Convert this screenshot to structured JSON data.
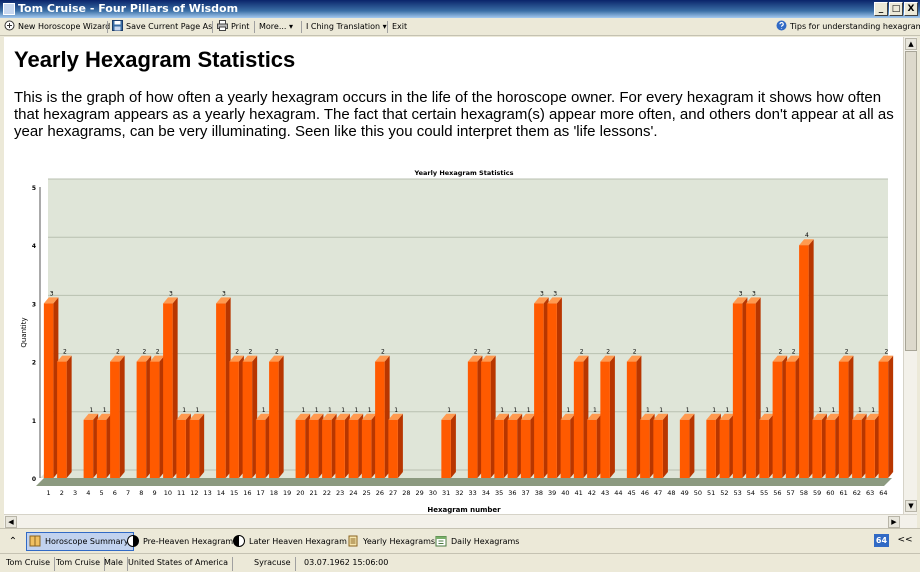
{
  "window": {
    "title": "Tom Cruise - Four Pillars of Wisdom",
    "controls": {
      "minimize": "_",
      "maximize": "□",
      "close": "X"
    }
  },
  "toolbar": {
    "new_wizard": "New Horoscope Wizard",
    "save_page": "Save Current Page As",
    "print": "Print",
    "more": "More...",
    "iching": "I Ching Translation",
    "exit": "Exit",
    "tips": "Tips for understanding hexagrams",
    "dropdown_glyph": "▾"
  },
  "page": {
    "heading": "Yearly Hexagram Statistics",
    "intro": "This is the graph of how often a yearly hexagram occurs in the life of the horoscope owner. For every hexagram it shows how often that hexagram appears as a yearly hexagram. The fact that certain hexagram(s) appear more often, and others don't appear at all as year hexagrams, can be very illuminating. Seen like this you could interpret them as 'life lessons'."
  },
  "chart_data": {
    "type": "bar",
    "title": "Yearly Hexagram Statistics",
    "xlabel": "Hexagram number",
    "ylabel": "Quantity",
    "ylim": [
      0,
      5
    ],
    "yticks": [
      0,
      1,
      2,
      3,
      4,
      5
    ],
    "grid": true,
    "bar_color": "#ff5a00",
    "plot_bg": "#dfe5d8",
    "categories": [
      "1",
      "2",
      "3",
      "4",
      "5",
      "6",
      "7",
      "8",
      "9",
      "10",
      "11",
      "12",
      "13",
      "14",
      "15",
      "16",
      "17",
      "18",
      "19",
      "20",
      "21",
      "22",
      "23",
      "24",
      "25",
      "26",
      "27",
      "28",
      "29",
      "30",
      "31",
      "32",
      "33",
      "34",
      "35",
      "36",
      "37",
      "38",
      "39",
      "40",
      "41",
      "42",
      "43",
      "44",
      "45",
      "46",
      "47",
      "48",
      "49",
      "50",
      "51",
      "52",
      "53",
      "54",
      "55",
      "56",
      "57",
      "58",
      "59",
      "60",
      "61",
      "62",
      "63",
      "64"
    ],
    "values": [
      3,
      2,
      0,
      1,
      1,
      2,
      0,
      2,
      2,
      3,
      1,
      1,
      0,
      3,
      2,
      2,
      1,
      2,
      0,
      1,
      1,
      1,
      1,
      1,
      1,
      2,
      1,
      0,
      0,
      0,
      1,
      0,
      2,
      2,
      1,
      1,
      1,
      3,
      3,
      1,
      2,
      1,
      2,
      0,
      2,
      1,
      1,
      0,
      1,
      0,
      1,
      1,
      3,
      3,
      1,
      2,
      2,
      4,
      1,
      1,
      2,
      1,
      1,
      2
    ]
  },
  "navbar": {
    "expand_glyph": "⌃",
    "tabs": [
      "Horoscope Summary",
      "Pre-Heaven Hexagram",
      "Later Heaven Hexagram",
      "Yearly Hexagrams",
      "Daily Hexagrams"
    ],
    "badge": "64",
    "collapse_glyph": "<<"
  },
  "status": {
    "fields": [
      "Tom Cruise",
      "Tom Cruise",
      "Male",
      "United States of America",
      "Syracuse",
      "03.07.1962 15:06:00"
    ]
  }
}
